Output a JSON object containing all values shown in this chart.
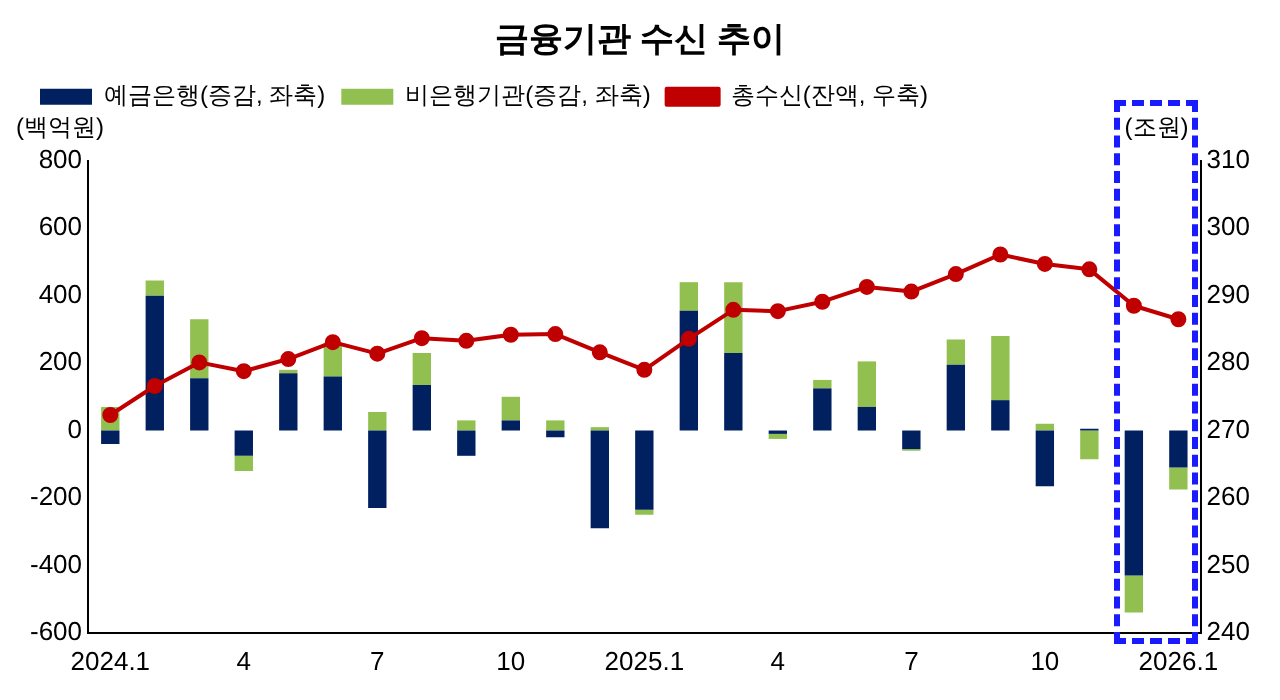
{
  "chart_data": {
    "type": "bar",
    "title": "금융기관 수신 추이",
    "ylabel": "(백억원)",
    "y2label": "(조원)",
    "categories": [
      "2024.1",
      null,
      null,
      "4",
      null,
      null,
      "7",
      null,
      null,
      "10",
      null,
      null,
      "2025.1",
      null,
      null,
      "4",
      null,
      null,
      "7",
      null,
      null,
      "10",
      null,
      null,
      "2026.1"
    ],
    "stacked": true,
    "series": [
      {
        "name": "예금은행(증감, 좌축)",
        "color": "#002060",
        "values": [
          -40,
          400,
          155,
          -75,
          170,
          160,
          -230,
          135,
          -75,
          30,
          -20,
          -290,
          -235,
          355,
          230,
          -10,
          125,
          70,
          -55,
          195,
          90,
          -165,
          5,
          -430,
          -110
        ]
      },
      {
        "name": "비은행기관(증감, 좌축)",
        "color": "#92c050",
        "values": [
          70,
          45,
          175,
          -45,
          10,
          100,
          55,
          95,
          30,
          70,
          30,
          10,
          -15,
          85,
          210,
          -15,
          25,
          135,
          -5,
          75,
          190,
          20,
          -85,
          -110,
          -65
        ]
      },
      {
        "name": "총수신(잔액, 우축)",
        "type": "line",
        "axis": "y2",
        "color": "#c00000",
        "marker": "circle",
        "values": [
          272.3,
          276.6,
          280.1,
          278.8,
          280.6,
          283.1,
          281.4,
          283.7,
          283.3,
          284.2,
          284.3,
          281.6,
          279.0,
          283.6,
          287.9,
          287.7,
          289.1,
          291.3,
          290.6,
          293.2,
          296.1,
          294.7,
          293.9,
          288.5,
          286.5
        ]
      }
    ],
    "ylim": [
      -600,
      800
    ],
    "yticks": [
      -600,
      -400,
      -200,
      0,
      200,
      400,
      600,
      800
    ],
    "y2lim": [
      240,
      310
    ],
    "y2ticks": [
      240,
      250,
      260,
      270,
      280,
      290,
      300,
      310
    ],
    "grid": false,
    "legend": "top left"
  }
}
